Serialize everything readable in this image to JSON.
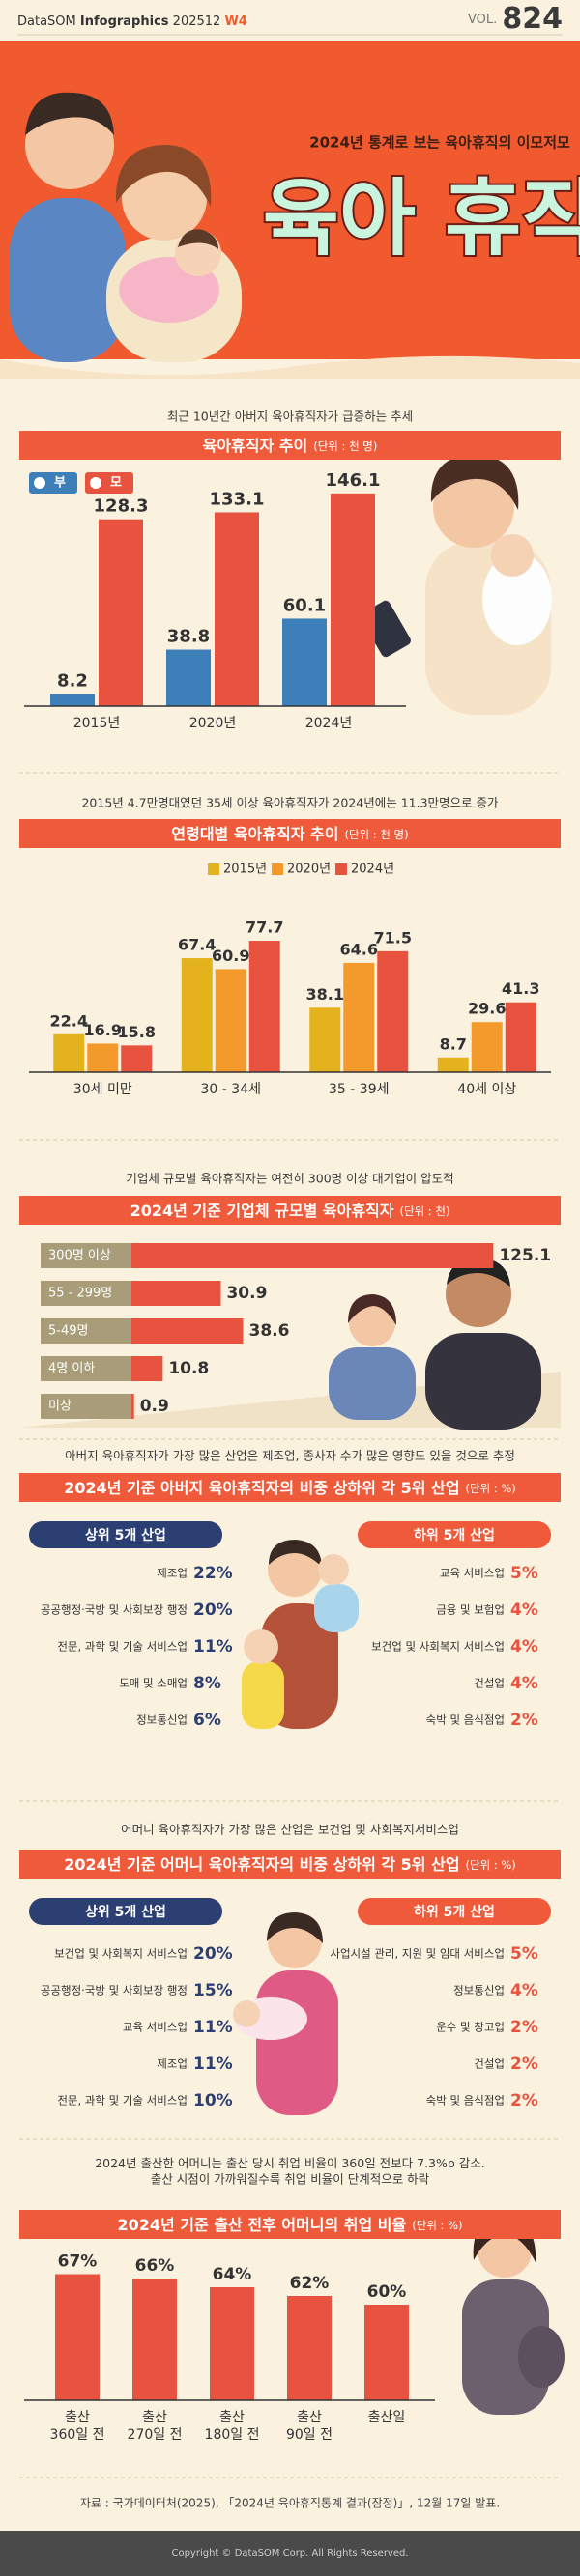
{
  "header": {
    "brand": "DataSOM",
    "series_name": "Infographics",
    "issue": "202512",
    "week": "W4",
    "vol_label": "VOL.",
    "vol": "824",
    "subtitle": "2024년 통계로 보는 육아휴직의 이모저모",
    "title": "육아 휴직"
  },
  "chart_data": [
    {
      "type": "bar",
      "subtitle": "최근 10년간 아버지 육아휴직자가 급증하는 추세",
      "title": "육아휴직자 추이",
      "unit": "(단위 : 천 명)",
      "categories": [
        "2015년",
        "2020년",
        "2024년"
      ],
      "series": [
        {
          "name": "부",
          "color": "#3d7fb8",
          "values": [
            8.2,
            38.8,
            60.1
          ]
        },
        {
          "name": "모",
          "color": "#e8533f",
          "values": [
            128.3,
            133.1,
            146.1
          ]
        }
      ],
      "ylim": [
        0,
        150
      ]
    },
    {
      "type": "bar",
      "subtitle": "2015년 4.7만명대였던 35세 이상 육아휴직자가 2024년에는 11.3만명으로 증가",
      "title": "연령대별 육아휴직자 추이",
      "unit": "(단위 : 천 명)",
      "categories": [
        "30세 미만",
        "30 - 34세",
        "35 - 39세",
        "40세 이상"
      ],
      "series": [
        {
          "name": "2015년",
          "color": "#e3b21c",
          "values": [
            22.4,
            67.4,
            38.1,
            8.7
          ]
        },
        {
          "name": "2020년",
          "color": "#f49a2c",
          "values": [
            16.9,
            60.9,
            64.6,
            29.6
          ]
        },
        {
          "name": "2024년",
          "color": "#e8533f",
          "values": [
            15.8,
            77.7,
            71.5,
            41.3
          ]
        }
      ],
      "ylim": [
        0,
        80
      ]
    },
    {
      "type": "hbar",
      "subtitle": "기업체 규모별 육아휴직자는 여전히 300명 이상 대기업이 압도적",
      "title": "2024년 기준 기업체 규모별 육아휴직자",
      "unit": "(단위 : 천)",
      "categories": [
        "300명 이상",
        "55 - 299명",
        "5-49명",
        "4명 이하",
        "미상"
      ],
      "values": [
        125.1,
        30.9,
        38.6,
        10.8,
        0.9
      ],
      "color": "#e8533f",
      "label_color": "#a89d78",
      "xlim": [
        0,
        130
      ]
    },
    {
      "type": "bar",
      "subtitle": "2024년 출산한 어머니는 출산 당시 취업 비율이 360일 전보다 7.3%p 감소.\n출산 시점이 가까워질수록 취업 비율이 단계적으로 하락",
      "title": "2024년 기준 출산 전후 어머니의 취업 비율",
      "unit": "(단위 : %)",
      "categories": [
        "출산\n360일 전",
        "출산\n270일 전",
        "출산\n180일 전",
        "출산\n90일 전",
        "출산일"
      ],
      "values": [
        67,
        66,
        64,
        62,
        60
      ],
      "value_labels": [
        "67%",
        "66%",
        "64%",
        "62%",
        "60%"
      ],
      "color": "#e8533f",
      "ylim": [
        38,
        68
      ]
    }
  ],
  "industry_tables": [
    {
      "subtitle": "아버지 육아휴직자가 가장 많은 산업은 제조업, 종사자 수가 많은 영향도 있을 것으로 추정",
      "title": "2024년 기준 아버지 육아휴직자의 비중 상하위 각 5위 산업",
      "unit": "(단위 : %)",
      "top": {
        "header": "상위 5개 산업",
        "rows": [
          [
            "제조업",
            "22%"
          ],
          [
            "공공행정·국방 및 사회보장 행정",
            "20%"
          ],
          [
            "전문, 과학 및 기술 서비스업",
            "11%"
          ],
          [
            "도매 및 소매업",
            "8%"
          ],
          [
            "정보통신업",
            "6%"
          ]
        ]
      },
      "bottom": {
        "header": "하위 5개 산업",
        "rows": [
          [
            "교육 서비스업",
            "5%"
          ],
          [
            "금융 및 보험업",
            "4%"
          ],
          [
            "보건업 및 사회복지 서비스업",
            "4%"
          ],
          [
            "건설업",
            "4%"
          ],
          [
            "숙박 및 음식점업",
            "2%"
          ]
        ]
      }
    },
    {
      "subtitle": "어머니 육아휴직자가 가장 많은 산업은 보건업 및 사회복지서비스업",
      "title": "2024년 기준 어머니 육아휴직자의 비중 상하위 각 5위 산업",
      "unit": "(단위 : %)",
      "top": {
        "header": "상위 5개 산업",
        "rows": [
          [
            "보건업 및 사회복지 서비스업",
            "20%"
          ],
          [
            "공공행정·국방 및 사회보장 행정",
            "15%"
          ],
          [
            "교육 서비스업",
            "11%"
          ],
          [
            "제조업",
            "11%"
          ],
          [
            "전문, 과학 및 기술 서비스업",
            "10%"
          ]
        ]
      },
      "bottom": {
        "header": "하위 5개 산업",
        "rows": [
          [
            "사업시설 관리, 지원 및 임대 서비스업",
            "5%"
          ],
          [
            "정보통신업",
            "4%"
          ],
          [
            "운수 및 창고업",
            "2%"
          ],
          [
            "건설업",
            "2%"
          ],
          [
            "숙박 및 음식점업",
            "2%"
          ]
        ]
      }
    }
  ],
  "source": "자료 : 국가데이터처(2025), 「2024년 육아휴직통계 결과(잠정)」, 12월 17일 발표.",
  "copyright": "Copyright © DataSOM Corp. All Rights Reserved."
}
